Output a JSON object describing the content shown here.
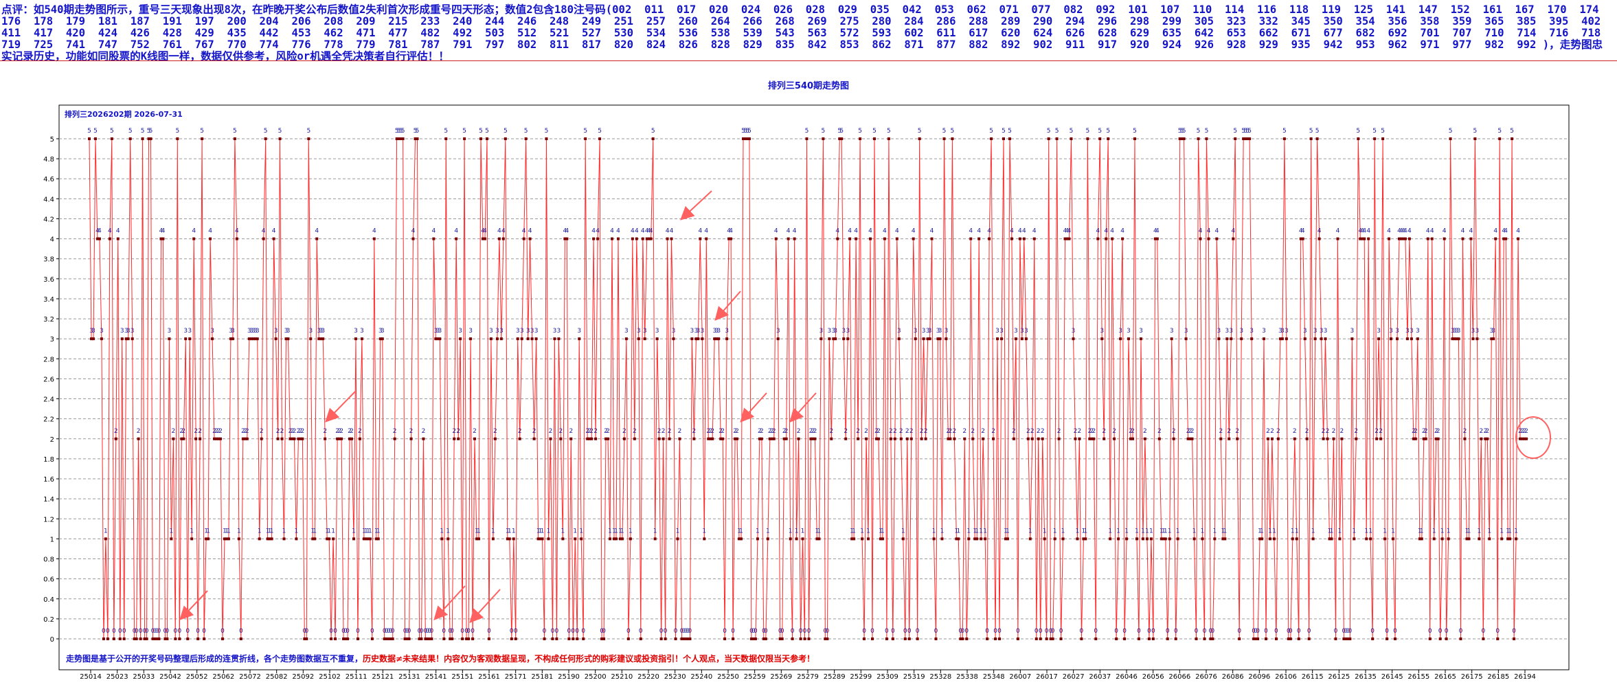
{
  "commentary": "点评：如540期走势图所示，重号三天现象出现8次，在昨晚开奖公布后数值2失利首次形成重号四天形态；数值2包含180注号码(002  011  017  020  024  026  028  029  035  042  053  062  071  077  082  092  101  107  110  114  116  118  119  125  141  147  152  161  167  170  174  176  178  179  181  187  191  197  200  204  206  208  209  215  233  240  244  246  248  249  251  257  260  264  266  268  269  275  280  284  286  288  289  290  294  296  298  299  305  323  332  345  350  354  356  358  359  365  385  395  402  411  417  420  424  426  428  429  435  442  453  462  471  477  482  492  503  512  521  527  530  534  536  538  539  543  563  572  593  602  611  617  620  624  626  628  629  635  642  653  662  671  677  682  692  701  707  710  714  716  718  719  725  741  747  752  761  767  770  774  776  778  779  781  787  791  797  802  811  817  820  824  826  828  829  835  842  853  862  871  877  882  892  902  911  917  920  924  926  928  929  935  942  953  962  971  977  982  992 )，走势图忠实记录历史，功能如同股票的K线图一样，数据仅供参考，风险or机遇全凭决策者自行评估！！",
  "chart_data": {
    "type": "line",
    "title": "排列三540期走势图",
    "series_label": "排列三2026202期 2026-07-31",
    "footer_blue": "走势图是基于公开的开奖号码整理后形成的连贯折线，各个走势图数据互不重复，",
    "footer_red": "历史数据≠未来结果！内容仅为客观数据呈现，不构成任何形式的购彩建议或投资指引！个人观点，当天数据仅限当天参考！",
    "y_ticks": [
      "0",
      "0.2",
      "0.4",
      "0.6",
      "0.8",
      "1",
      "1.2",
      "1.4",
      "1.6",
      "1.8",
      "2",
      "2.2",
      "2.4",
      "2.6",
      "2.8",
      "3",
      "3.2",
      "3.4",
      "3.6",
      "3.8",
      "4",
      "4.2",
      "4.4",
      "4.6",
      "4.8",
      "5"
    ],
    "ylim": [
      0,
      5
    ],
    "x_tick_labels": [
      "25014",
      "25023",
      "25033",
      "25042",
      "25052",
      "25062",
      "25072",
      "25082",
      "25092",
      "25102",
      "25111",
      "25121",
      "25131",
      "25141",
      "25151",
      "25161",
      "25171",
      "25181",
      "25190",
      "25200",
      "25210",
      "25220",
      "25230",
      "25240",
      "25250",
      "25259",
      "25269",
      "25279",
      "25289",
      "25299",
      "25309",
      "25319",
      "25328",
      "25338",
      "25348",
      "26007",
      "26017",
      "26027",
      "26037",
      "26046",
      "26056",
      "26066",
      "26076",
      "26086",
      "26096",
      "26106",
      "26115",
      "26125",
      "26135",
      "26145",
      "26155",
      "26165",
      "26175",
      "26185",
      "26194"
    ],
    "grid": true,
    "series": [
      {
        "color": "#ff2a2a",
        "values": [
          5,
          3,
          3,
          5,
          4,
          4,
          3,
          0,
          1,
          0,
          4,
          5,
          0,
          2,
          4,
          0,
          3,
          0,
          3,
          3,
          5,
          3,
          0,
          0,
          2,
          0,
          5,
          0,
          0,
          5,
          5,
          0,
          0,
          0,
          0,
          4,
          4,
          0,
          0,
          3,
          1,
          2,
          0,
          5,
          0,
          2,
          2,
          3,
          0,
          3,
          1,
          4,
          2,
          0,
          2,
          5,
          0,
          1,
          1,
          4,
          3,
          2,
          2,
          2,
          2,
          0,
          1,
          1,
          1,
          3,
          3,
          5,
          4,
          1,
          0,
          2,
          2,
          2,
          3,
          3,
          3,
          3,
          3,
          1,
          2,
          4,
          5,
          1,
          1,
          1,
          4,
          3,
          2,
          5,
          2,
          1,
          3,
          3,
          2,
          2,
          2,
          1,
          2,
          2,
          2,
          0,
          0,
          5,
          3,
          1,
          1,
          4,
          3,
          3,
          3,
          2,
          1,
          1,
          0,
          1,
          0,
          2,
          2,
          2,
          0,
          0,
          0,
          2,
          2,
          1,
          3,
          0,
          2,
          3,
          1,
          1,
          1,
          1,
          0,
          4,
          1,
          1,
          3,
          3,
          0,
          0,
          0,
          0,
          0,
          2,
          5,
          5,
          5,
          5,
          0,
          0,
          0,
          2,
          4,
          5,
          5,
          0,
          0,
          2,
          0,
          0,
          0,
          0,
          4,
          3,
          3,
          3,
          1,
          0,
          5,
          1,
          0,
          0,
          2,
          4,
          2,
          3,
          0,
          5,
          0,
          0,
          3,
          0,
          2,
          1,
          1,
          5,
          4,
          4,
          5,
          0,
          3,
          1,
          2,
          3,
          4,
          3,
          4,
          5,
          1,
          1,
          0,
          1,
          0,
          3,
          2,
          3,
          4,
          5,
          3,
          4,
          3,
          2,
          3,
          1,
          1,
          1,
          0,
          5,
          1,
          2,
          0,
          3,
          0,
          3,
          2,
          1,
          4,
          4,
          0,
          2,
          0,
          1,
          0,
          3,
          1,
          0,
          5,
          2,
          2,
          2,
          4,
          2,
          4,
          5,
          0,
          0,
          2,
          2,
          1,
          4,
          1,
          1,
          4,
          1,
          1,
          2,
          3,
          0,
          1,
          4,
          2,
          4,
          3,
          0,
          4,
          3,
          4,
          4,
          4,
          5,
          1,
          3,
          2,
          0,
          2,
          0,
          4,
          2,
          4,
          3,
          0,
          1,
          2,
          0,
          0,
          0,
          0,
          0,
          3,
          2,
          3,
          3,
          4,
          3,
          1,
          4,
          2,
          2,
          2,
          3,
          3,
          3,
          2,
          2,
          0,
          3,
          4,
          4,
          0,
          2,
          2,
          1,
          1,
          5,
          5,
          5,
          5,
          0,
          0,
          0,
          1,
          2,
          2,
          0,
          0,
          1,
          2,
          2,
          2,
          4,
          3,
          0,
          0,
          2,
          2,
          4,
          1,
          0,
          4,
          1,
          2,
          0,
          1,
          0,
          5,
          0,
          2,
          2,
          2,
          1,
          1,
          3,
          5,
          0,
          0,
          3,
          2,
          3,
          3,
          4,
          5,
          5,
          3,
          2,
          3,
          4,
          1,
          1,
          4,
          2,
          5,
          1,
          0,
          2,
          1,
          4,
          0,
          5,
          2,
          2,
          1,
          1,
          4,
          0,
          5,
          2,
          0,
          2,
          4,
          3,
          2,
          1,
          0,
          2,
          0,
          2,
          4,
          3,
          0,
          5,
          2,
          3,
          2,
          3,
          3,
          4,
          1,
          0,
          3,
          3,
          1,
          5,
          3,
          2,
          2,
          5,
          2,
          1,
          1,
          0,
          0,
          2,
          0,
          1,
          4,
          2,
          1,
          1,
          4,
          1,
          2,
          1,
          0,
          4,
          5,
          2,
          0,
          3,
          0,
          3,
          5,
          1,
          1,
          5,
          4,
          2,
          3,
          0,
          4,
          3,
          4,
          3,
          2,
          1,
          2,
          4,
          0,
          2,
          0,
          2,
          1,
          0,
          5,
          0,
          0,
          1,
          5,
          2,
          0,
          1,
          4,
          4,
          4,
          5,
          3,
          2,
          1,
          2,
          0,
          1,
          1,
          5,
          2,
          2,
          2,
          0,
          4,
          5,
          3,
          2,
          4,
          5,
          1,
          4,
          2,
          0,
          1,
          3,
          4,
          0,
          1,
          3,
          2,
          2,
          5,
          1,
          0,
          3,
          1,
          2,
          1,
          0,
          1,
          0,
          4,
          4,
          2,
          1,
          1,
          1,
          0,
          1,
          3,
          2,
          0,
          1,
          5,
          5,
          5,
          3,
          2,
          2,
          2,
          1,
          0,
          5,
          4,
          1,
          0,
          5,
          4,
          0,
          0,
          1,
          4,
          3,
          2,
          1,
          1,
          3,
          2,
          3,
          4,
          5,
          2,
          0,
          3,
          5,
          5,
          5,
          5,
          3,
          0,
          0,
          0,
          1,
          1,
          3,
          0,
          2,
          1,
          2,
          1,
          0,
          2,
          3,
          3,
          5,
          3,
          0,
          0,
          1,
          2,
          1,
          0,
          4,
          4,
          3,
          2,
          0,
          5,
          1,
          3,
          5,
          4,
          3,
          2,
          3,
          2,
          1,
          1,
          2,
          0,
          4,
          1,
          2,
          0,
          0,
          0,
          0,
          3,
          1,
          2,
          5,
          4,
          4,
          4,
          1,
          4,
          1,
          0,
          5,
          2,
          3,
          2,
          5,
          1,
          0,
          4,
          3,
          1,
          0,
          3,
          4,
          4,
          4,
          4,
          3,
          4,
          3,
          2,
          2,
          3,
          1,
          1,
          2,
          2,
          4,
          0,
          4,
          1,
          2,
          2,
          0,
          1,
          4,
          0,
          1,
          5,
          3,
          3,
          3,
          3,
          0,
          4,
          2,
          1,
          1,
          4,
          3,
          5,
          3,
          1,
          2,
          0,
          2,
          2,
          1,
          3,
          3,
          4,
          0,
          5,
          1,
          4,
          4,
          1,
          1,
          5,
          0,
          1,
          4,
          2,
          2,
          2,
          2
        ]
      }
    ],
    "point_labels_shown": true,
    "annotation": "arrows mark repeated-value runs; circle marks latest repeat-four-days formation"
  }
}
